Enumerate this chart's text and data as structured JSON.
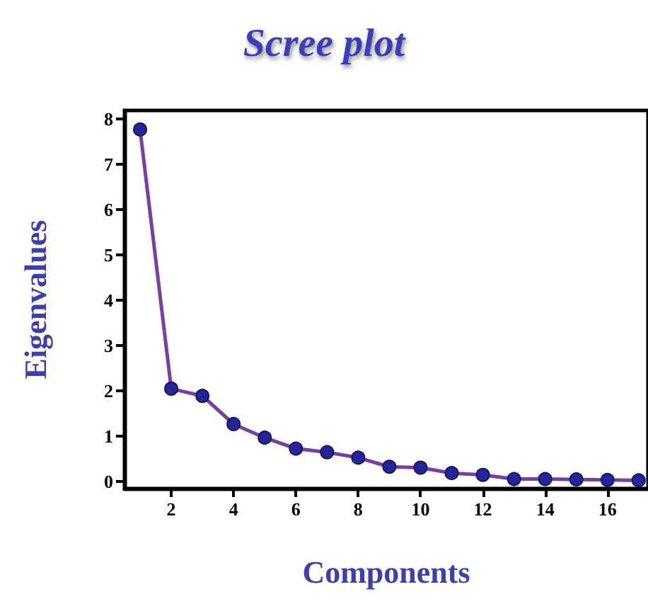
{
  "chart_data": {
    "type": "line",
    "title": "Scree plot",
    "xlabel": "Components",
    "ylabel": "Eigenvalues",
    "x": [
      1,
      2,
      3,
      4,
      5,
      6,
      7,
      8,
      9,
      10,
      11,
      12,
      13,
      14,
      15,
      16,
      17
    ],
    "series": [
      {
        "color": "#7a3e9e",
        "values": [
          7.76,
          2.05,
          1.89,
          1.27,
          0.97,
          0.73,
          0.65,
          0.53,
          0.33,
          0.31,
          0.19,
          0.15,
          0.06,
          0.06,
          0.05,
          0.04,
          0.03
        ]
      }
    ],
    "xlim": [
      0.5,
      17.3
    ],
    "xticks": [
      2,
      4,
      6,
      8,
      10,
      12,
      14,
      16
    ],
    "ylim": [
      -0.15,
      8.18
    ],
    "yticks": [
      0,
      1,
      2,
      3,
      4,
      5,
      6,
      7,
      8
    ],
    "grid": false,
    "marker": "circle",
    "line_style": "solid"
  }
}
